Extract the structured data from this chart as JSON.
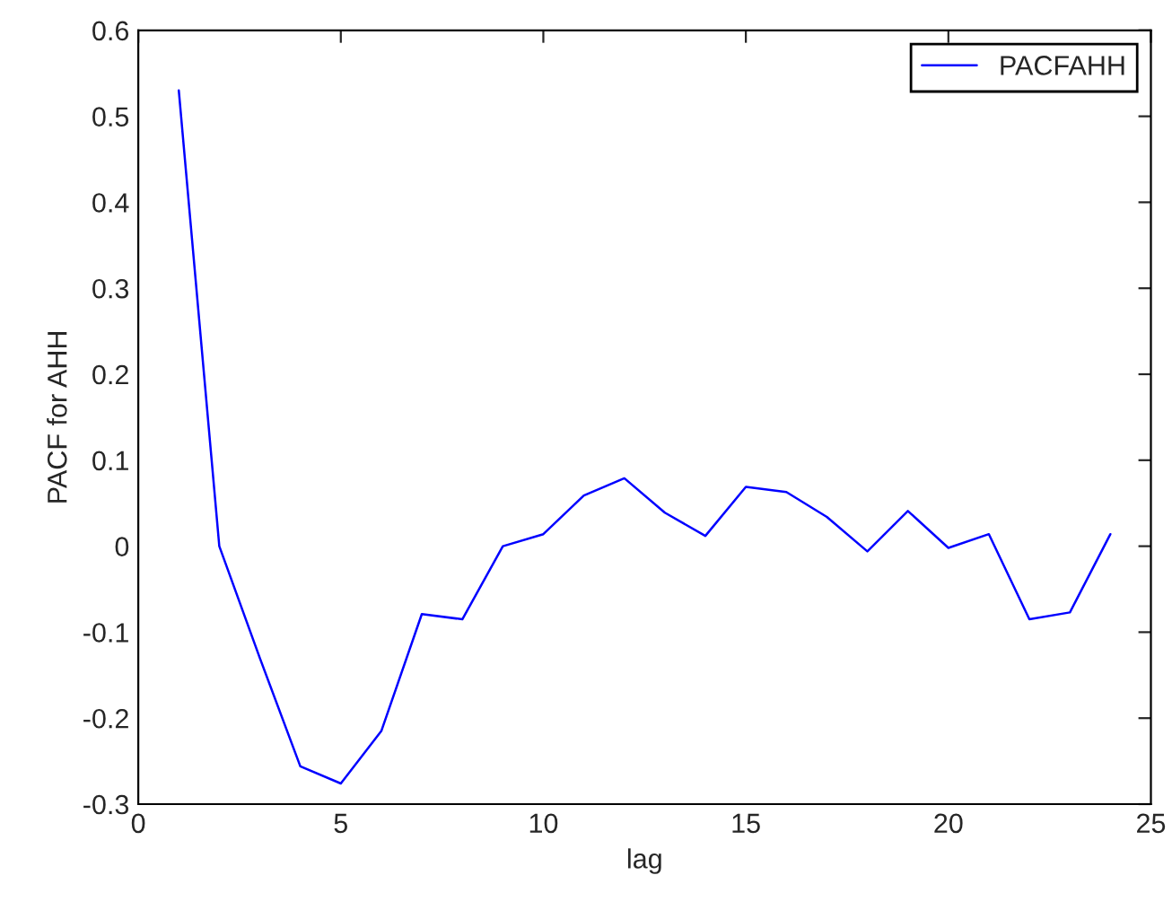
{
  "chart_data": {
    "type": "line",
    "xlabel": "lag",
    "ylabel": "PACF for AHH",
    "x": [
      1,
      2,
      3,
      4,
      5,
      6,
      7,
      8,
      9,
      10,
      11,
      12,
      13,
      14,
      15,
      16,
      17,
      18,
      19,
      20,
      21,
      22,
      23,
      24
    ],
    "series": [
      {
        "name": "PACFAHH",
        "color": "#0000ff",
        "values": [
          0.53,
          0.0,
          -0.13,
          -0.256,
          -0.276,
          -0.215,
          -0.079,
          -0.085,
          0.0,
          0.014,
          0.059,
          0.079,
          0.039,
          0.012,
          0.069,
          0.063,
          0.034,
          -0.006,
          0.041,
          -0.002,
          0.014,
          -0.085,
          -0.077,
          0.014
        ]
      }
    ],
    "xlim": [
      0,
      25
    ],
    "xticks": [
      0,
      5,
      10,
      15,
      20,
      25
    ],
    "ylim": [
      -0.3,
      0.6
    ],
    "yticks": [
      -0.3,
      -0.2,
      -0.1,
      0,
      0.1,
      0.2,
      0.3,
      0.4,
      0.5,
      0.6
    ],
    "legend": "top right",
    "grid": false,
    "marker": "none",
    "line_style": "solid"
  }
}
